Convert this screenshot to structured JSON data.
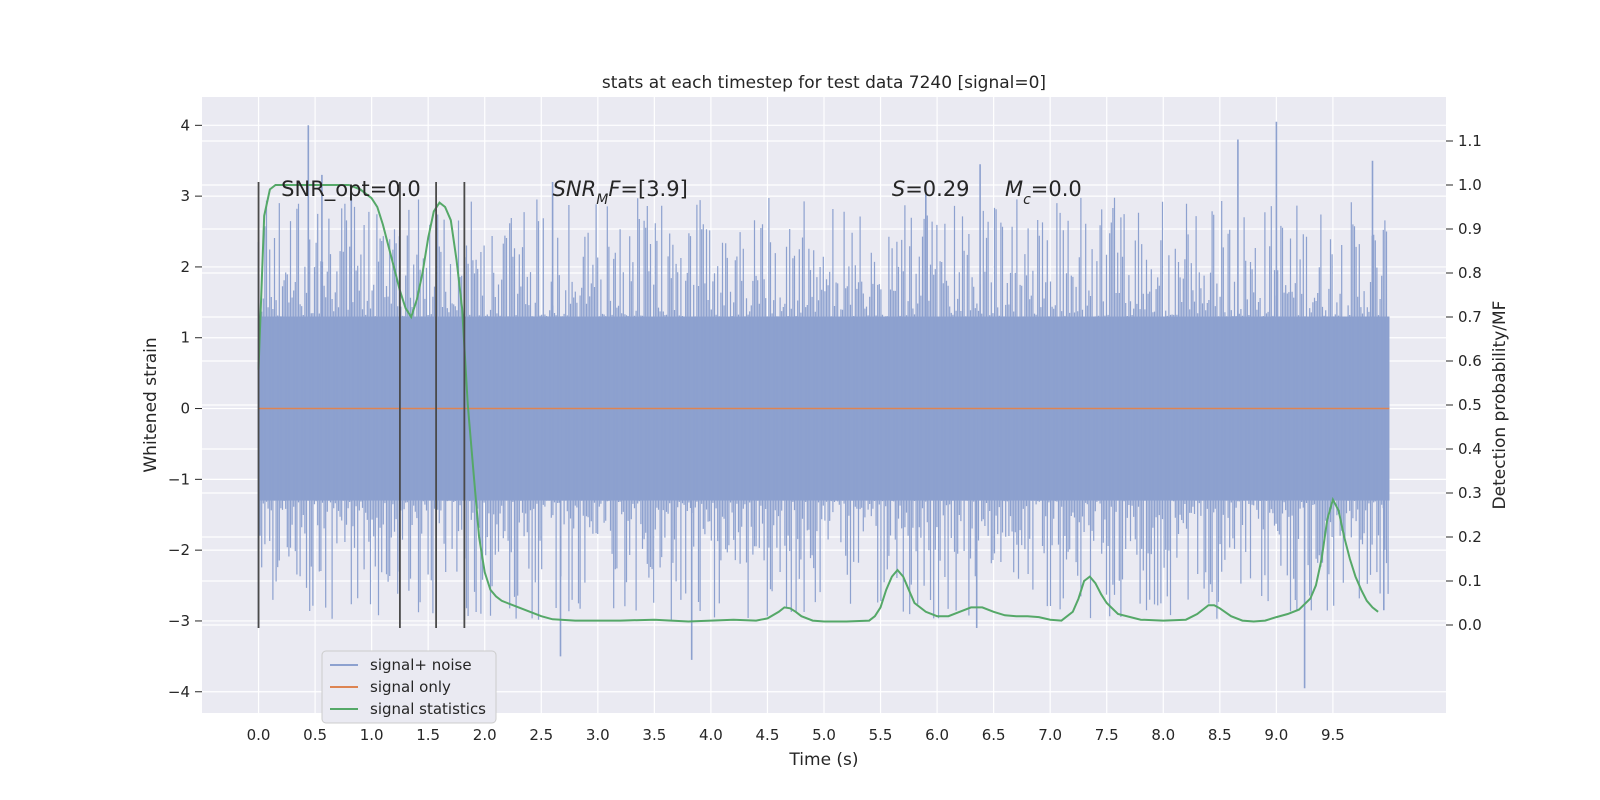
{
  "chart_data": {
    "type": "line",
    "title": "stats at each timestep for test data 7240 [signal=0]",
    "xlabel": "Time (s)",
    "ylabel": "Whitened strain",
    "y2label": "Detection probability/MF",
    "xlim": [
      -0.5,
      10.5
    ],
    "ylim": [
      -4.3,
      4.4
    ],
    "y2lim": [
      -0.2,
      1.2
    ],
    "x_ticks": [
      "0.0",
      "0.5",
      "1.0",
      "1.5",
      "2.0",
      "2.5",
      "3.0",
      "3.5",
      "4.0",
      "4.5",
      "5.0",
      "5.5",
      "6.0",
      "6.5",
      "7.0",
      "7.5",
      "8.0",
      "8.5",
      "9.0",
      "9.5"
    ],
    "y_ticks": [
      "4",
      "3",
      "2",
      "1",
      "0",
      "−1",
      "−2",
      "−3",
      "−4"
    ],
    "y2_ticks": [
      "1.1",
      "1.0",
      "0.9",
      "0.8",
      "0.7",
      "0.6",
      "0.5",
      "0.4",
      "0.3",
      "0.2",
      "0.1",
      "0.0"
    ],
    "grid": true,
    "legend_position": "lower-left",
    "series": [
      {
        "name": "signal+ noise",
        "color": "#8da1cf",
        "axis": "left",
        "style": "dense-noise",
        "x_range": [
          0.0,
          10.0
        ],
        "band": [
          -1.3,
          1.3
        ],
        "peaks": [
          {
            "x": 0.0,
            "y": 2.35
          },
          {
            "x": 0.0,
            "y": -3.1
          },
          {
            "x": 0.44,
            "y": 4.0
          },
          {
            "x": 0.56,
            "y": 3.3
          },
          {
            "x": 0.82,
            "y": 3.05
          },
          {
            "x": 2.6,
            "y": 3.2
          },
          {
            "x": 2.67,
            "y": -3.5
          },
          {
            "x": 3.83,
            "y": -3.55
          },
          {
            "x": 5.9,
            "y": 3.2
          },
          {
            "x": 6.35,
            "y": -3.1
          },
          {
            "x": 6.38,
            "y": 3.45
          },
          {
            "x": 8.66,
            "y": 3.8
          },
          {
            "x": 9.0,
            "y": 4.05
          },
          {
            "x": 9.25,
            "y": -3.95
          },
          {
            "x": 9.85,
            "y": 3.5
          },
          {
            "x": 9.95,
            "y": -2.85
          }
        ]
      },
      {
        "name": "signal only",
        "color": "#dd8452",
        "axis": "left",
        "x": [
          0.0,
          10.0
        ],
        "y": [
          0.0,
          0.0
        ]
      },
      {
        "name": "signal statistics",
        "color": "#55a868",
        "axis": "right",
        "x": [
          0.0,
          0.05,
          0.1,
          0.15,
          0.2,
          0.3,
          0.4,
          0.5,
          0.6,
          0.7,
          0.8,
          0.9,
          1.0,
          1.05,
          1.1,
          1.15,
          1.2,
          1.25,
          1.3,
          1.35,
          1.4,
          1.45,
          1.5,
          1.55,
          1.6,
          1.65,
          1.7,
          1.75,
          1.8,
          1.85,
          1.9,
          1.95,
          2.0,
          2.05,
          2.1,
          2.15,
          2.2,
          2.3,
          2.4,
          2.5,
          2.6,
          2.8,
          3.0,
          3.2,
          3.5,
          3.8,
          4.0,
          4.2,
          4.4,
          4.5,
          4.6,
          4.65,
          4.7,
          4.75,
          4.8,
          4.9,
          5.0,
          5.2,
          5.4,
          5.45,
          5.5,
          5.55,
          5.6,
          5.65,
          5.7,
          5.75,
          5.8,
          5.9,
          6.0,
          6.1,
          6.2,
          6.3,
          6.4,
          6.5,
          6.6,
          6.7,
          6.8,
          6.9,
          7.0,
          7.1,
          7.2,
          7.25,
          7.3,
          7.35,
          7.4,
          7.45,
          7.5,
          7.6,
          7.8,
          8.0,
          8.2,
          8.3,
          8.4,
          8.45,
          8.5,
          8.6,
          8.7,
          8.8,
          8.9,
          9.0,
          9.1,
          9.2,
          9.3,
          9.35,
          9.4,
          9.45,
          9.5,
          9.55,
          9.6,
          9.65,
          9.7,
          9.75,
          9.8,
          9.85,
          9.9
        ],
        "y": [
          0.58,
          0.93,
          0.99,
          1.0,
          1.0,
          1.0,
          1.0,
          1.0,
          1.0,
          1.0,
          1.0,
          0.99,
          0.97,
          0.95,
          0.91,
          0.86,
          0.81,
          0.76,
          0.72,
          0.7,
          0.74,
          0.8,
          0.88,
          0.94,
          0.96,
          0.95,
          0.92,
          0.83,
          0.72,
          0.5,
          0.35,
          0.2,
          0.12,
          0.08,
          0.065,
          0.055,
          0.05,
          0.04,
          0.03,
          0.02,
          0.013,
          0.01,
          0.01,
          0.01,
          0.012,
          0.008,
          0.01,
          0.012,
          0.01,
          0.015,
          0.03,
          0.04,
          0.038,
          0.03,
          0.02,
          0.01,
          0.008,
          0.008,
          0.01,
          0.02,
          0.04,
          0.08,
          0.11,
          0.125,
          0.11,
          0.08,
          0.05,
          0.03,
          0.02,
          0.02,
          0.03,
          0.04,
          0.04,
          0.03,
          0.022,
          0.02,
          0.02,
          0.018,
          0.012,
          0.01,
          0.03,
          0.06,
          0.1,
          0.11,
          0.095,
          0.07,
          0.05,
          0.025,
          0.012,
          0.01,
          0.012,
          0.025,
          0.045,
          0.045,
          0.038,
          0.02,
          0.01,
          0.008,
          0.01,
          0.018,
          0.025,
          0.035,
          0.06,
          0.09,
          0.15,
          0.24,
          0.285,
          0.26,
          0.2,
          0.15,
          0.11,
          0.08,
          0.055,
          0.04,
          0.03
        ]
      }
    ],
    "vlines": [
      {
        "x": 0.0,
        "y_range": [
          -3.1,
          3.2
        ]
      },
      {
        "x": 1.25,
        "y_range": [
          -3.1,
          3.2
        ]
      },
      {
        "x": 1.57,
        "y_range": [
          -3.1,
          3.2
        ]
      },
      {
        "x": 1.82,
        "y_range": [
          -3.1,
          3.2
        ]
      }
    ],
    "annotations": [
      {
        "key": "snr_opt",
        "parts": [
          {
            "t": "SNR_opt=0.0",
            "i": false
          }
        ],
        "x": 0.2,
        "y": 3.1
      },
      {
        "key": "snr_mf",
        "parts": [
          {
            "t": "SNR",
            "i": true
          },
          {
            "t": "M",
            "i": true,
            "sub": true
          },
          {
            "t": "F",
            "i": true
          },
          {
            "t": "=[3.9]",
            "i": false
          }
        ],
        "x": 2.6,
        "y": 3.1
      },
      {
        "key": "s_value",
        "parts": [
          {
            "t": "S",
            "i": true
          },
          {
            "t": "=0.29",
            "i": false
          }
        ],
        "x": 5.6,
        "y": 3.1
      },
      {
        "key": "mc_value",
        "parts": [
          {
            "t": "M",
            "i": true
          },
          {
            "t": "c",
            "i": true,
            "sub": true
          },
          {
            "t": "=0.0",
            "i": false
          }
        ],
        "x": 6.6,
        "y": 3.1
      }
    ]
  }
}
